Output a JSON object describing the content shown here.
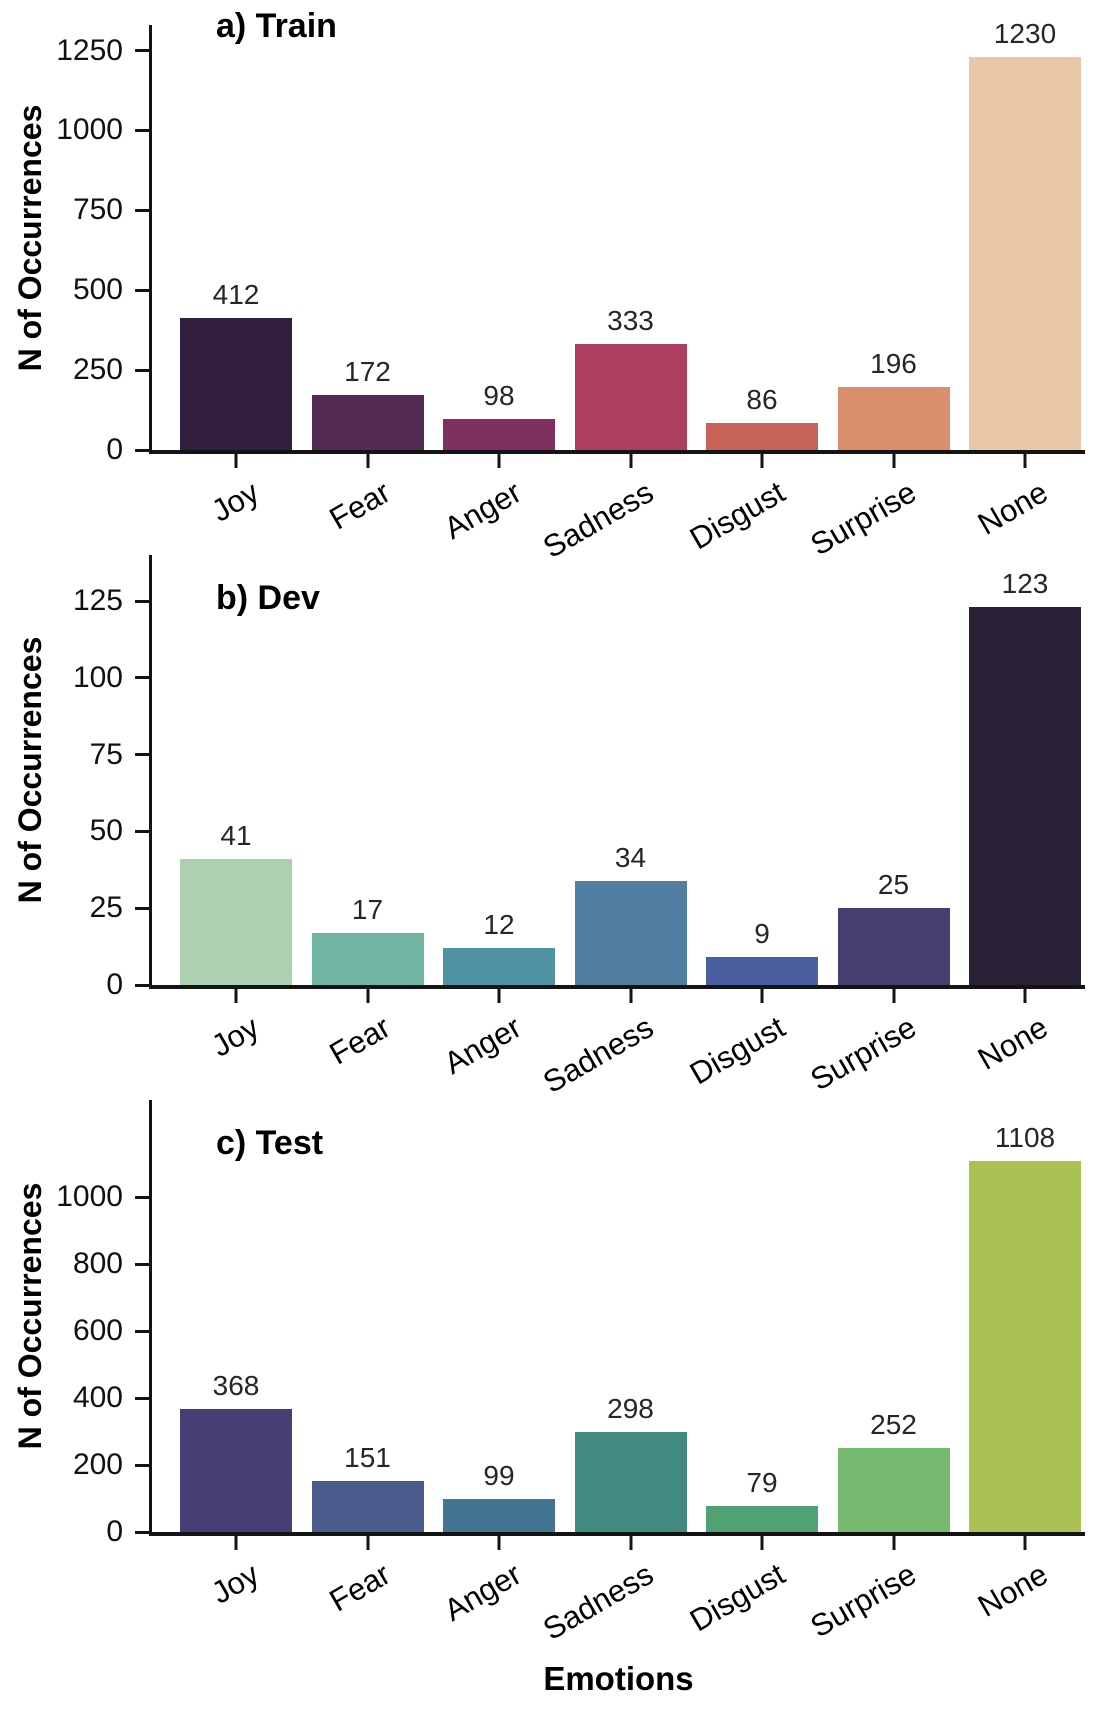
{
  "figure": {
    "xlabel": "Emotions",
    "ylabel": "N of Occurrences",
    "background": "#ffffff",
    "axis_color": "#141414",
    "value_label_color": "#262626"
  },
  "chart_data": [
    {
      "type": "bar",
      "title": "a) Train",
      "ylabel": "N of Occurrences",
      "categories": [
        "Joy",
        "Fear",
        "Anger",
        "Sadness",
        "Disgust",
        "Surprise",
        "None"
      ],
      "values": [
        412,
        172,
        98,
        333,
        86,
        196,
        1230
      ],
      "bar_colors": [
        "#33203e",
        "#532b53",
        "#7e3061",
        "#ae3e60",
        "#c66257",
        "#d98f6c",
        "#e9c8a8"
      ],
      "yticks": [
        0,
        250,
        500,
        750,
        1000,
        1250
      ],
      "ylim": [
        0,
        1330
      ],
      "grid": false,
      "legend": null,
      "xtick_rotation_deg": 30
    },
    {
      "type": "bar",
      "title": "b) Dev",
      "ylabel": "N of Occurrences",
      "categories": [
        "Joy",
        "Fear",
        "Anger",
        "Sadness",
        "Disgust",
        "Surprise",
        "None"
      ],
      "values": [
        41,
        17,
        12,
        34,
        9,
        25,
        123
      ],
      "bar_colors": [
        "#aed0b2",
        "#71b5a4",
        "#4f93a2",
        "#527ea2",
        "#4a5f9f",
        "#443f6e",
        "#2a2137"
      ],
      "yticks": [
        0,
        25,
        50,
        75,
        100,
        125
      ],
      "ylim": [
        0,
        140
      ],
      "grid": false,
      "legend": null,
      "xtick_rotation_deg": 30
    },
    {
      "type": "bar",
      "title": "c) Test",
      "ylabel": "N of Occurrences",
      "categories": [
        "Joy",
        "Fear",
        "Anger",
        "Sadness",
        "Disgust",
        "Surprise",
        "None"
      ],
      "values": [
        368,
        151,
        99,
        298,
        79,
        252,
        1108
      ],
      "bar_colors": [
        "#483d75",
        "#4b5b8d",
        "#427591",
        "#418a80",
        "#4ea273",
        "#76ba71",
        "#aac253"
      ],
      "yticks": [
        0,
        200,
        400,
        600,
        800,
        1000
      ],
      "ylim": [
        0,
        1290
      ],
      "grid": false,
      "legend": null,
      "xtick_rotation_deg": 30
    }
  ]
}
